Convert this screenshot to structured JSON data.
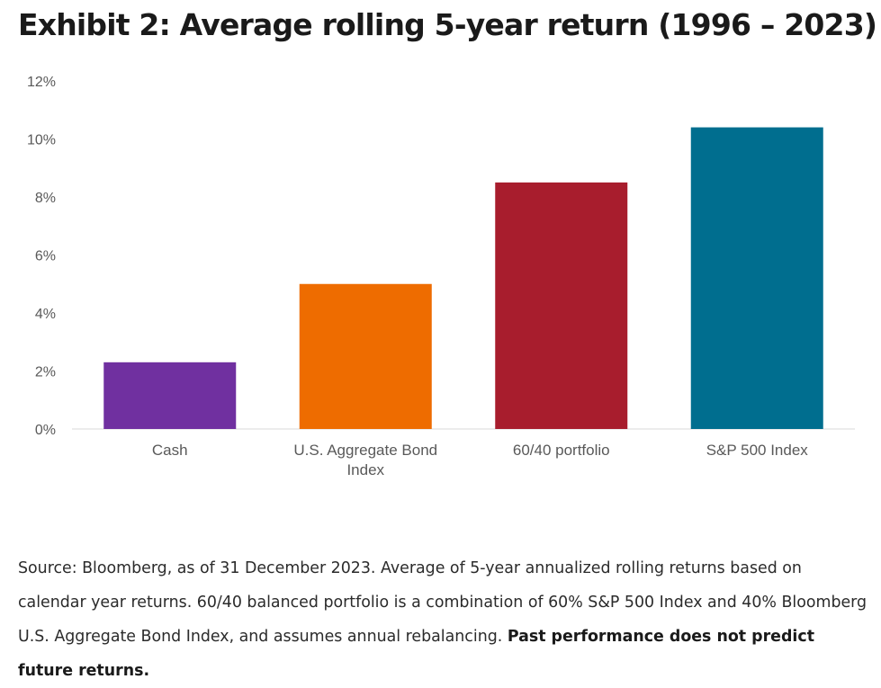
{
  "title": "Exhibit 2: Average rolling 5-year return (1996 – 2023)",
  "chart_data": {
    "type": "bar",
    "title": "Exhibit 2: Average rolling 5-year return (1996 – 2023)",
    "xlabel": "",
    "ylabel": "",
    "categories": [
      [
        "Cash"
      ],
      [
        "U.S. Aggregate Bond",
        "Index"
      ],
      [
        "60/40 portfolio"
      ],
      [
        "S&P 500 Index"
      ]
    ],
    "values": [
      2.3,
      5.0,
      8.5,
      10.4
    ],
    "colors": [
      "#7030a0",
      "#ee6c00",
      "#a81d2d",
      "#006e8f"
    ],
    "ylim": [
      0,
      12
    ],
    "yticks": [
      0,
      2,
      4,
      6,
      8,
      10,
      12
    ],
    "ytick_labels": [
      "0%",
      "2%",
      "4%",
      "6%",
      "8%",
      "10%",
      "12%"
    ],
    "grid": false,
    "legend": "none"
  },
  "source": {
    "text": "Source: Bloomberg, as of 31 December 2023. Average of 5-year annualized rolling returns based on calendar year returns. 60/40 balanced portfolio is a combination of 60% S&P 500 Index and 40% Bloomberg U.S. Aggregate Bond Index, and assumes annual rebalancing. ",
    "bold_text": "Past performance does not predict future returns."
  }
}
